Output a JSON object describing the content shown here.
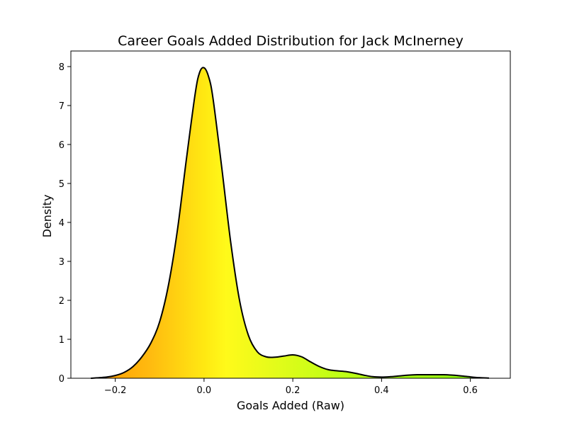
{
  "chart_data": {
    "type": "area",
    "title": "Career Goals Added Distribution for Jack McInerney",
    "xlabel": "Goals Added (Raw)",
    "ylabel": "Density",
    "xlim": [
      -0.3,
      0.69
    ],
    "ylim": [
      0,
      8.4
    ],
    "x_ticks": [
      -0.2,
      0.0,
      0.2,
      0.4,
      0.6
    ],
    "x_tick_labels": [
      "−0.2",
      "0.0",
      "0.2",
      "0.4",
      "0.6"
    ],
    "y_ticks": [
      0,
      1,
      2,
      3,
      4,
      5,
      6,
      7,
      8
    ],
    "y_tick_labels": [
      "0",
      "1",
      "2",
      "3",
      "4",
      "5",
      "6",
      "7",
      "8"
    ],
    "grid": false,
    "line_color": "#000000",
    "fill_gradient": {
      "stops": [
        {
          "x": -0.25,
          "color": "#ff9900"
        },
        {
          "x": -0.12,
          "color": "#ffbb10"
        },
        {
          "x": 0.0,
          "color": "#ffe812"
        },
        {
          "x": 0.05,
          "color": "#fffa1a"
        },
        {
          "x": 0.15,
          "color": "#e6fb1a"
        },
        {
          "x": 0.3,
          "color": "#bfff16"
        },
        {
          "x": 0.64,
          "color": "#88ff0e"
        }
      ]
    },
    "series": [
      {
        "x": [
          -0.255,
          -0.22,
          -0.2,
          -0.18,
          -0.16,
          -0.14,
          -0.12,
          -0.1,
          -0.08,
          -0.06,
          -0.04,
          -0.02,
          -0.01,
          0.0,
          0.01,
          0.02,
          0.04,
          0.06,
          0.08,
          0.1,
          0.12,
          0.14,
          0.16,
          0.18,
          0.2,
          0.22,
          0.24,
          0.26,
          0.28,
          0.3,
          0.32,
          0.34,
          0.36,
          0.38,
          0.4,
          0.42,
          0.44,
          0.46,
          0.48,
          0.5,
          0.52,
          0.54,
          0.56,
          0.58,
          0.6,
          0.62,
          0.642
        ],
        "y": [
          0.0,
          0.03,
          0.07,
          0.15,
          0.3,
          0.55,
          0.9,
          1.45,
          2.4,
          3.8,
          5.6,
          7.3,
          7.85,
          7.97,
          7.75,
          7.2,
          5.4,
          3.5,
          2.0,
          1.1,
          0.68,
          0.55,
          0.54,
          0.57,
          0.6,
          0.55,
          0.42,
          0.3,
          0.22,
          0.19,
          0.17,
          0.13,
          0.08,
          0.04,
          0.03,
          0.04,
          0.06,
          0.08,
          0.09,
          0.09,
          0.09,
          0.09,
          0.08,
          0.06,
          0.035,
          0.015,
          0.005
        ]
      }
    ]
  }
}
